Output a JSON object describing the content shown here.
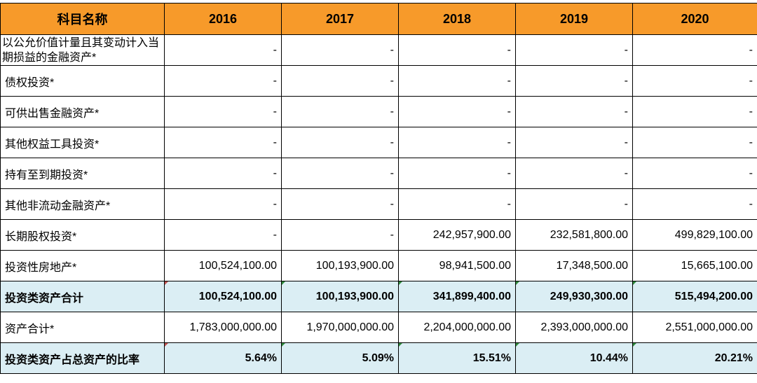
{
  "header": [
    "科目名称",
    "2016",
    "2017",
    "2018",
    "2019",
    "2020"
  ],
  "rows": [
    {
      "label": "以公允价值计量且其变动计入当期损益的金融资产*",
      "values": [
        "-",
        "-",
        "-",
        "-",
        "-"
      ]
    },
    {
      "label": "债权投资*",
      "values": [
        "-",
        "-",
        "-",
        "-",
        "-"
      ]
    },
    {
      "label": "可供出售金融资产*",
      "values": [
        "-",
        "-",
        "-",
        "-",
        "-"
      ]
    },
    {
      "label": "其他权益工具投资*",
      "values": [
        "-",
        "-",
        "-",
        "-",
        "-"
      ]
    },
    {
      "label": "持有至到期投资*",
      "values": [
        "-",
        "-",
        "-",
        "-",
        "-"
      ]
    },
    {
      "label": "其他非流动金融资产*",
      "values": [
        "-",
        "-",
        "-",
        "-",
        "-"
      ]
    },
    {
      "label": "长期股权投资*",
      "values": [
        "-",
        "-",
        "242,957,900.00",
        "232,581,800.00",
        "499,829,100.00"
      ]
    },
    {
      "label": "投资性房地产*",
      "values": [
        "100,524,100.00",
        "100,193,900.00",
        "98,941,500.00",
        "17,348,500.00",
        "15,665,100.00"
      ]
    },
    {
      "label": "投资类资产合计",
      "values": [
        "100,524,100.00",
        "100,193,900.00",
        "341,899,400.00",
        "249,930,300.00",
        "515,494,200.00"
      ]
    },
    {
      "label": "资产合计*",
      "values": [
        "1,783,000,000.00",
        "1,970,000,000.00",
        "2,204,000,000.00",
        "2,393,000,000.00",
        "2,551,000,000.00"
      ]
    },
    {
      "label": "投资类资产占总资产的比率",
      "values": [
        "5.64%",
        "5.09%",
        "15.51%",
        "10.44%",
        "20.21%"
      ]
    }
  ],
  "colors": {
    "header_bg": "#f79a2a",
    "total_row_bg": "#dbeef4",
    "comment_marker": "#c0504d",
    "formula_marker": "#2e8b3a"
  }
}
